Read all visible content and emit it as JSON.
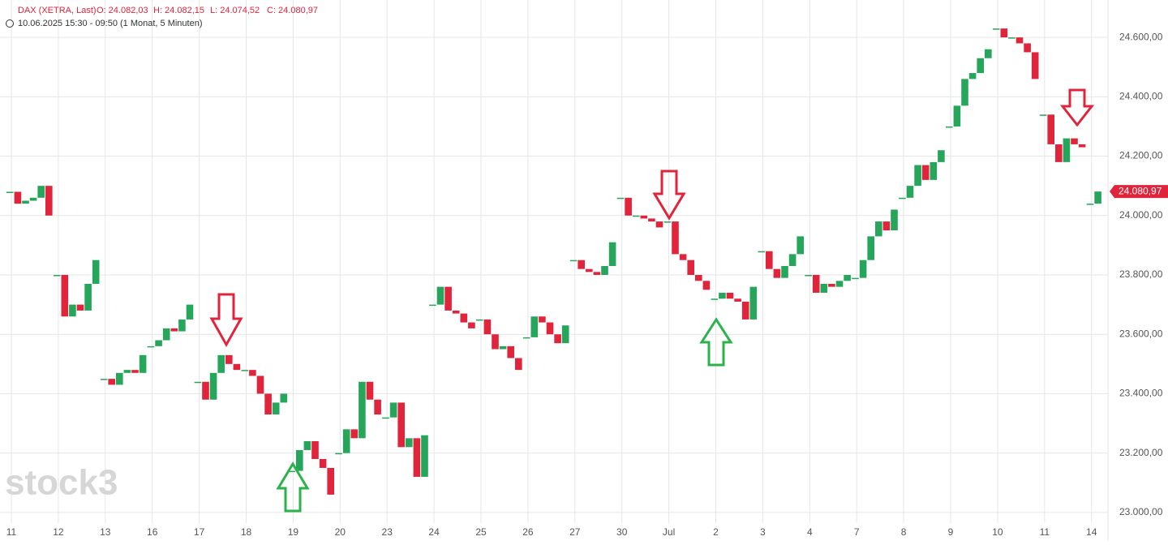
{
  "chart_data": {
    "type": "candle-line",
    "instrument": "DAX (XETRA, Last)",
    "ohlc": [
      "O: 24.082,03",
      "H: 24.082,15",
      "L: 24.074,52",
      "C: 24.080,97"
    ],
    "subtitle": "10.06.2025 15:30 - 09:50  (1 Monat, 5 Minuten)",
    "watermark": "stock3",
    "up_color": "#26a65b",
    "down_color": "#e0243b",
    "categories": [
      "11",
      "12",
      "13",
      "16",
      "17",
      "18",
      "19",
      "20",
      "23",
      "24",
      "25",
      "26",
      "27",
      "30",
      "Jul",
      "2",
      "3",
      "4",
      "7",
      "8",
      "9",
      "10",
      "11",
      "14"
    ],
    "values": [
      [
        24080,
        24040,
        24050,
        24060,
        24100,
        24000
      ],
      [
        23800,
        23660,
        23700,
        23680,
        23770,
        23850
      ],
      [
        23450,
        23430,
        23470,
        23480,
        23470,
        23530
      ],
      [
        23560,
        23580,
        23620,
        23610,
        23650,
        23700
      ],
      [
        23440,
        23380,
        23470,
        23530,
        23500,
        23480
      ],
      [
        23480,
        23460,
        23400,
        23330,
        23370,
        23400
      ],
      [
        23140,
        23210,
        23240,
        23180,
        23150,
        23060
      ],
      [
        23200,
        23280,
        23250,
        23440,
        23380,
        23330
      ],
      [
        23320,
        23370,
        23220,
        23250,
        23120,
        23260
      ],
      [
        23700,
        23760,
        23680,
        23670,
        23640,
        23620
      ],
      [
        23650,
        23600,
        23550,
        23560,
        23520,
        23480
      ],
      [
        23590,
        23660,
        23640,
        23600,
        23570,
        23630
      ],
      [
        23850,
        23820,
        23810,
        23800,
        23830,
        23910
      ],
      [
        24060,
        24000,
        24000,
        23990,
        23980,
        23960
      ],
      [
        23980,
        23870,
        23850,
        23800,
        23780,
        23750
      ],
      [
        23720,
        23740,
        23720,
        23710,
        23650,
        23760
      ],
      [
        23880,
        23820,
        23790,
        23830,
        23870,
        23930
      ],
      [
        23800,
        23740,
        23770,
        23760,
        23780,
        23800
      ],
      [
        23790,
        23850,
        23930,
        23980,
        23950,
        24020
      ],
      [
        24060,
        24100,
        24170,
        24120,
        24180,
        24220
      ],
      [
        24300,
        24370,
        24460,
        24480,
        24530,
        24560
      ],
      [
        24630,
        24600,
        24600,
        24580,
        24550,
        24460
      ],
      [
        24340,
        24240,
        24180,
        24260,
        24240,
        24230
      ],
      [
        24040,
        24080.97
      ]
    ],
    "last": {
      "value": 24080.97,
      "label": "24.080,97"
    },
    "ylim": [
      22904,
      24726
    ],
    "yticks": [
      {
        "value": 23000,
        "label": "23.000,00"
      },
      {
        "value": 23200,
        "label": "23.200,00"
      },
      {
        "value": 23400,
        "label": "23.400,00"
      },
      {
        "value": 23600,
        "label": "23.600,00"
      },
      {
        "value": 23800,
        "label": "23.800,00"
      },
      {
        "value": 24000,
        "label": "24.000,00"
      },
      {
        "value": 24200,
        "label": "24.200,00"
      },
      {
        "value": 24400,
        "label": "24.400,00"
      },
      {
        "value": 24600,
        "label": "24.600,00"
      }
    ],
    "grid": true
  }
}
